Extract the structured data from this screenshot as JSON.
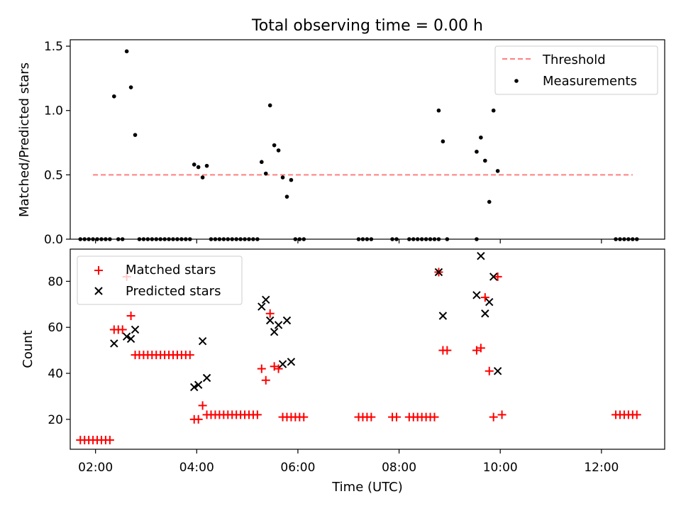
{
  "figure_title": "Total observing time = 0.00 h",
  "colors": {
    "threshold": "#ff7f7f",
    "measurements": "#000000",
    "matched": "#ff0000",
    "predicted": "#000000"
  },
  "x_tick_labels": [
    "02:00",
    "04:00",
    "06:00",
    "08:00",
    "10:00",
    "12:00"
  ],
  "chart_data": [
    {
      "type": "scatter",
      "title": "Total observing time = 0.00 h",
      "xlabel": "",
      "ylabel": "Matched/Predicted stars",
      "ylim": [
        0,
        1.55
      ],
      "y_ticks": [
        0.0,
        0.5,
        1.0,
        1.5
      ],
      "y_tick_labels": [
        "0.0",
        "0.5",
        "1.0",
        "1.5"
      ],
      "legend_position": "top-right",
      "series": [
        {
          "name": "Threshold",
          "kind": "dashed-line",
          "points": [
            [
              "01:57",
              0.5
            ],
            [
              "12:37",
              0.5
            ]
          ]
        },
        {
          "name": "Measurements",
          "kind": "dots",
          "points": [
            [
              "01:42",
              0
            ],
            [
              "01:47",
              0
            ],
            [
              "01:52",
              0
            ],
            [
              "01:57",
              0
            ],
            [
              "02:02",
              0
            ],
            [
              "02:07",
              0
            ],
            [
              "02:12",
              0
            ],
            [
              "02:17",
              0
            ],
            [
              "02:22",
              1.11
            ],
            [
              "02:27",
              0
            ],
            [
              "02:32",
              0
            ],
            [
              "02:37",
              1.46
            ],
            [
              "02:42",
              1.18
            ],
            [
              "02:47",
              0.81
            ],
            [
              "02:52",
              0
            ],
            [
              "02:57",
              0
            ],
            [
              "03:02",
              0
            ],
            [
              "03:07",
              0
            ],
            [
              "03:12",
              0
            ],
            [
              "03:17",
              0
            ],
            [
              "03:22",
              0
            ],
            [
              "03:27",
              0
            ],
            [
              "03:32",
              0
            ],
            [
              "03:37",
              0
            ],
            [
              "03:42",
              0
            ],
            [
              "03:47",
              0
            ],
            [
              "03:52",
              0
            ],
            [
              "03:57",
              0.58
            ],
            [
              "04:02",
              0.56
            ],
            [
              "04:07",
              0.48
            ],
            [
              "04:12",
              0.57
            ],
            [
              "04:17",
              0
            ],
            [
              "04:22",
              0
            ],
            [
              "04:27",
              0
            ],
            [
              "04:32",
              0
            ],
            [
              "04:37",
              0
            ],
            [
              "04:42",
              0
            ],
            [
              "04:47",
              0
            ],
            [
              "04:52",
              0
            ],
            [
              "04:57",
              0
            ],
            [
              "05:02",
              0
            ],
            [
              "05:07",
              0
            ],
            [
              "05:12",
              0
            ],
            [
              "05:17",
              0.6
            ],
            [
              "05:22",
              0.51
            ],
            [
              "05:27",
              1.04
            ],
            [
              "05:32",
              0.73
            ],
            [
              "05:37",
              0.69
            ],
            [
              "05:42",
              0.48
            ],
            [
              "05:47",
              0.33
            ],
            [
              "05:52",
              0.46
            ],
            [
              "05:57",
              0
            ],
            [
              "06:02",
              0
            ],
            [
              "06:07",
              0
            ],
            [
              "07:12",
              0
            ],
            [
              "07:17",
              0
            ],
            [
              "07:22",
              0
            ],
            [
              "07:27",
              0
            ],
            [
              "07:52",
              0
            ],
            [
              "07:57",
              0
            ],
            [
              "08:12",
              0
            ],
            [
              "08:17",
              0
            ],
            [
              "08:22",
              0
            ],
            [
              "08:27",
              0
            ],
            [
              "08:32",
              0
            ],
            [
              "08:37",
              0
            ],
            [
              "08:42",
              0
            ],
            [
              "08:47",
              0
            ],
            [
              "08:47",
              1.0
            ],
            [
              "08:52",
              0.76
            ],
            [
              "08:57",
              0
            ],
            [
              "09:32",
              0
            ],
            [
              "09:32",
              0.68
            ],
            [
              "09:37",
              0.79
            ],
            [
              "09:42",
              0.61
            ],
            [
              "09:47",
              0.29
            ],
            [
              "09:52",
              1.0
            ],
            [
              "09:57",
              0.53
            ],
            [
              "12:17",
              0
            ],
            [
              "12:22",
              0
            ],
            [
              "12:27",
              0
            ],
            [
              "12:32",
              0
            ],
            [
              "12:37",
              0
            ],
            [
              "12:42",
              0
            ]
          ]
        }
      ]
    },
    {
      "type": "scatter",
      "xlabel": "Time (UTC)",
      "ylabel": "Count",
      "ylim": [
        7,
        94
      ],
      "y_ticks": [
        20,
        40,
        60,
        80
      ],
      "y_tick_labels": [
        "20",
        "40",
        "60",
        "80"
      ],
      "legend_position": "top-left",
      "series": [
        {
          "name": "Matched stars",
          "kind": "plus",
          "points": [
            [
              "01:42",
              11
            ],
            [
              "01:47",
              11
            ],
            [
              "01:52",
              11
            ],
            [
              "01:57",
              11
            ],
            [
              "02:02",
              11
            ],
            [
              "02:07",
              11
            ],
            [
              "02:12",
              11
            ],
            [
              "02:17",
              11
            ],
            [
              "02:22",
              59
            ],
            [
              "02:27",
              59
            ],
            [
              "02:32",
              59
            ],
            [
              "02:37",
              82
            ],
            [
              "02:42",
              65
            ],
            [
              "02:47",
              48
            ],
            [
              "02:52",
              48
            ],
            [
              "02:57",
              48
            ],
            [
              "03:02",
              48
            ],
            [
              "03:07",
              48
            ],
            [
              "03:12",
              48
            ],
            [
              "03:17",
              48
            ],
            [
              "03:22",
              48
            ],
            [
              "03:27",
              48
            ],
            [
              "03:32",
              48
            ],
            [
              "03:37",
              48
            ],
            [
              "03:42",
              48
            ],
            [
              "03:47",
              48
            ],
            [
              "03:52",
              48
            ],
            [
              "03:57",
              20
            ],
            [
              "04:02",
              20
            ],
            [
              "04:07",
              26
            ],
            [
              "04:12",
              22
            ],
            [
              "04:17",
              22
            ],
            [
              "04:22",
              22
            ],
            [
              "04:27",
              22
            ],
            [
              "04:32",
              22
            ],
            [
              "04:37",
              22
            ],
            [
              "04:42",
              22
            ],
            [
              "04:47",
              22
            ],
            [
              "04:52",
              22
            ],
            [
              "04:57",
              22
            ],
            [
              "05:02",
              22
            ],
            [
              "05:07",
              22
            ],
            [
              "05:12",
              22
            ],
            [
              "05:17",
              42
            ],
            [
              "05:22",
              37
            ],
            [
              "05:27",
              66
            ],
            [
              "05:32",
              43
            ],
            [
              "05:37",
              42
            ],
            [
              "05:42",
              21
            ],
            [
              "05:47",
              21
            ],
            [
              "05:52",
              21
            ],
            [
              "05:57",
              21
            ],
            [
              "06:02",
              21
            ],
            [
              "06:07",
              21
            ],
            [
              "07:12",
              21
            ],
            [
              "07:17",
              21
            ],
            [
              "07:22",
              21
            ],
            [
              "07:27",
              21
            ],
            [
              "07:52",
              21
            ],
            [
              "07:57",
              21
            ],
            [
              "08:12",
              21
            ],
            [
              "08:17",
              21
            ],
            [
              "08:22",
              21
            ],
            [
              "08:27",
              21
            ],
            [
              "08:32",
              21
            ],
            [
              "08:37",
              21
            ],
            [
              "08:42",
              21
            ],
            [
              "08:47",
              84
            ],
            [
              "08:52",
              50
            ],
            [
              "08:57",
              50
            ],
            [
              "09:32",
              50
            ],
            [
              "09:37",
              51
            ],
            [
              "09:42",
              73
            ],
            [
              "09:47",
              41
            ],
            [
              "09:52",
              21
            ],
            [
              "09:57",
              82
            ],
            [
              "10:02",
              22
            ],
            [
              "12:17",
              22
            ],
            [
              "12:22",
              22
            ],
            [
              "12:27",
              22
            ],
            [
              "12:32",
              22
            ],
            [
              "12:37",
              22
            ],
            [
              "12:42",
              22
            ]
          ]
        },
        {
          "name": "Predicted stars",
          "kind": "cross",
          "points": [
            [
              "02:22",
              53
            ],
            [
              "02:37",
              56
            ],
            [
              "02:42",
              55
            ],
            [
              "02:47",
              59
            ],
            [
              "03:57",
              34
            ],
            [
              "04:02",
              35
            ],
            [
              "04:07",
              54
            ],
            [
              "04:12",
              38
            ],
            [
              "05:17",
              69
            ],
            [
              "05:22",
              72
            ],
            [
              "05:27",
              63
            ],
            [
              "05:32",
              58
            ],
            [
              "05:37",
              61
            ],
            [
              "05:42",
              44
            ],
            [
              "05:47",
              63
            ],
            [
              "05:52",
              45
            ],
            [
              "08:47",
              84
            ],
            [
              "08:52",
              65
            ],
            [
              "09:32",
              74
            ],
            [
              "09:37",
              91
            ],
            [
              "09:42",
              66
            ],
            [
              "09:47",
              71
            ],
            [
              "09:52",
              82
            ],
            [
              "09:57",
              41
            ]
          ]
        }
      ]
    }
  ]
}
